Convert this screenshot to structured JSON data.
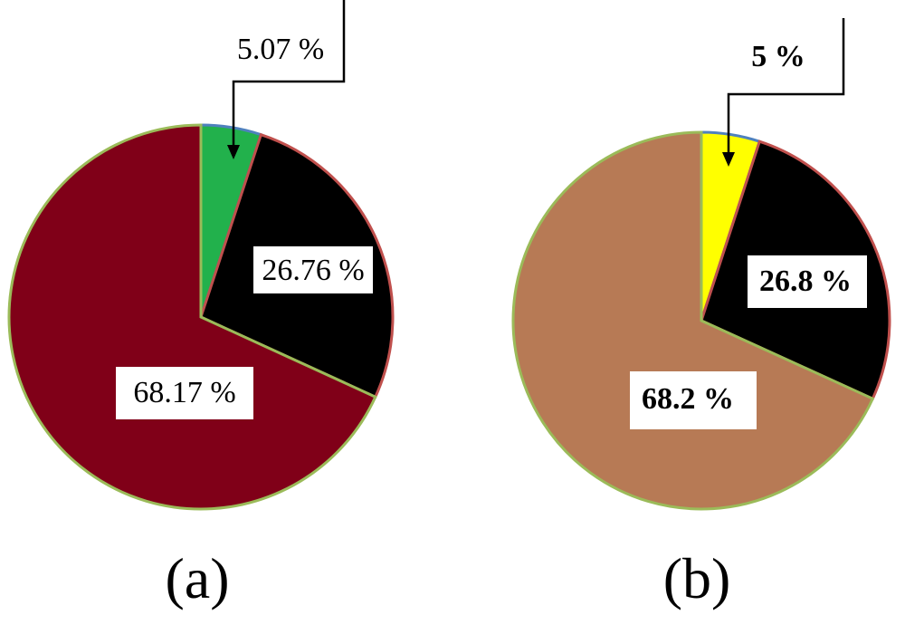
{
  "chart_data": [
    {
      "type": "pie",
      "panel": "(a)",
      "slices": [
        {
          "label": "5.07 %",
          "value": 5.07,
          "color": "#22b14c",
          "edge": "#4f81bd"
        },
        {
          "label": "26.76 %",
          "value": 26.76,
          "color": "#000000",
          "edge": "#c0504d"
        },
        {
          "label": "68.17 %",
          "value": 68.17,
          "color": "#800018",
          "edge": "#9bbb59"
        }
      ],
      "label_bold": false
    },
    {
      "type": "pie",
      "panel": "(b)",
      "slices": [
        {
          "label": "5 %",
          "value": 5,
          "color": "#ffff00",
          "edge": "#4f81bd"
        },
        {
          "label": "26.8 %",
          "value": 26.8,
          "color": "#000000",
          "edge": "#c0504d"
        },
        {
          "label": "68.2 %",
          "value": 68.2,
          "color": "#b77a55",
          "edge": "#9bbb59"
        }
      ],
      "label_bold": true
    }
  ]
}
